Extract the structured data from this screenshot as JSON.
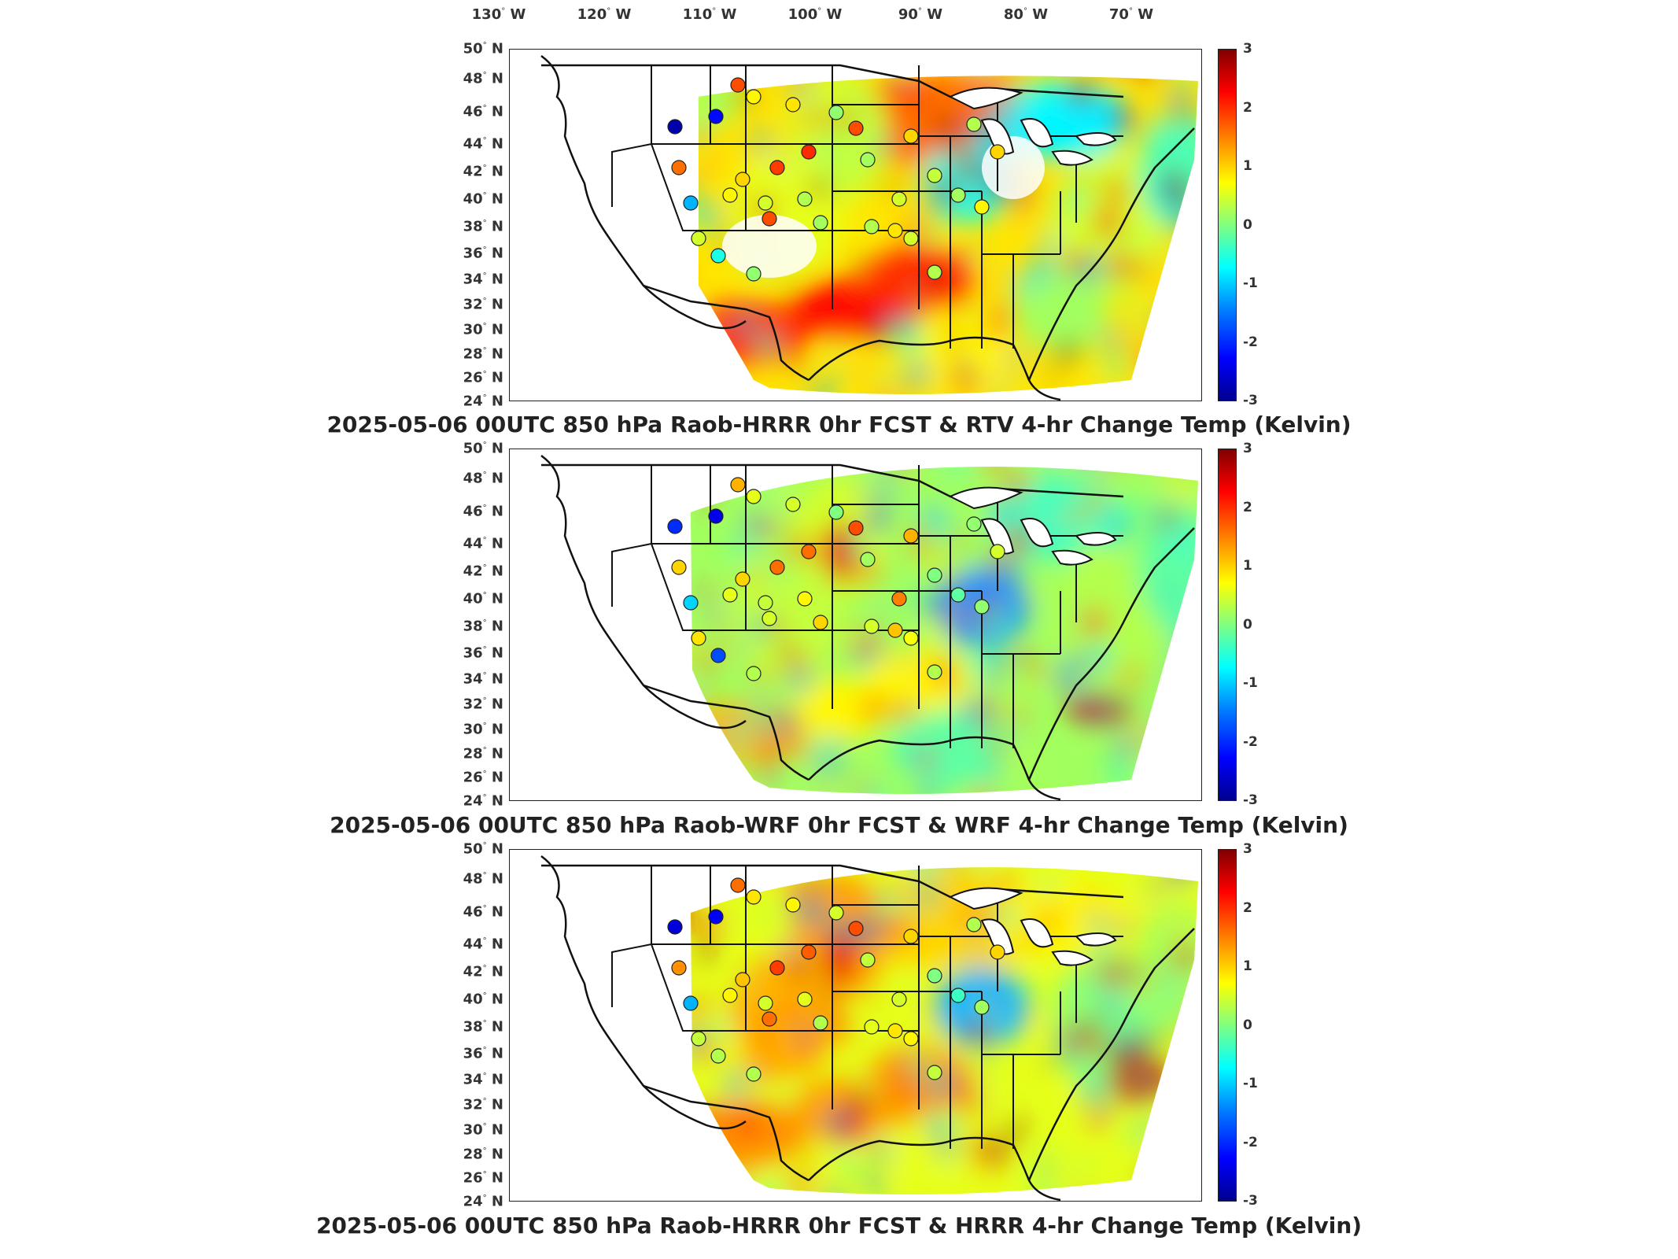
{
  "longitude_labels": [
    {
      "text": "130",
      "dir": "W"
    },
    {
      "text": "120",
      "dir": "W"
    },
    {
      "text": "110",
      "dir": "W"
    },
    {
      "text": "100",
      "dir": "W"
    },
    {
      "text": "90",
      "dir": "W"
    },
    {
      "text": "80",
      "dir": "W"
    },
    {
      "text": "70",
      "dir": "W"
    }
  ],
  "latitude_labels": [
    "50",
    "48",
    "46",
    "44",
    "42",
    "40",
    "38",
    "36",
    "34",
    "32",
    "30",
    "28",
    "26",
    "24"
  ],
  "latitude_suffix": "N",
  "colorbar_ticks": [
    "3",
    "2",
    "1",
    "0",
    "-1",
    "-2",
    "-3"
  ],
  "colors": {
    "scale": [
      "#00008f",
      "#0000ff",
      "#0080ff",
      "#00ffff",
      "#80ff80",
      "#ffff00",
      "#ff8000",
      "#ff0000",
      "#800000"
    ],
    "border": "#111111"
  },
  "panels": [
    {
      "title": "2025-05-06 00UTC 850 hPa Raob-HRRR 0hr FCST & RTV 4-hr Change Temp (Kelvin)",
      "field": "rtv"
    },
    {
      "title": "2025-05-06 00UTC 850 hPa Raob-WRF 0hr FCST & WRF 4-hr Change Temp (Kelvin)",
      "field": "wrf"
    },
    {
      "title": "2025-05-06 00UTC 850 hPa Raob-HRRR 0hr FCST & HRRR 4-hr Change Temp (Kelvin)",
      "field": "hrrr"
    }
  ]
}
